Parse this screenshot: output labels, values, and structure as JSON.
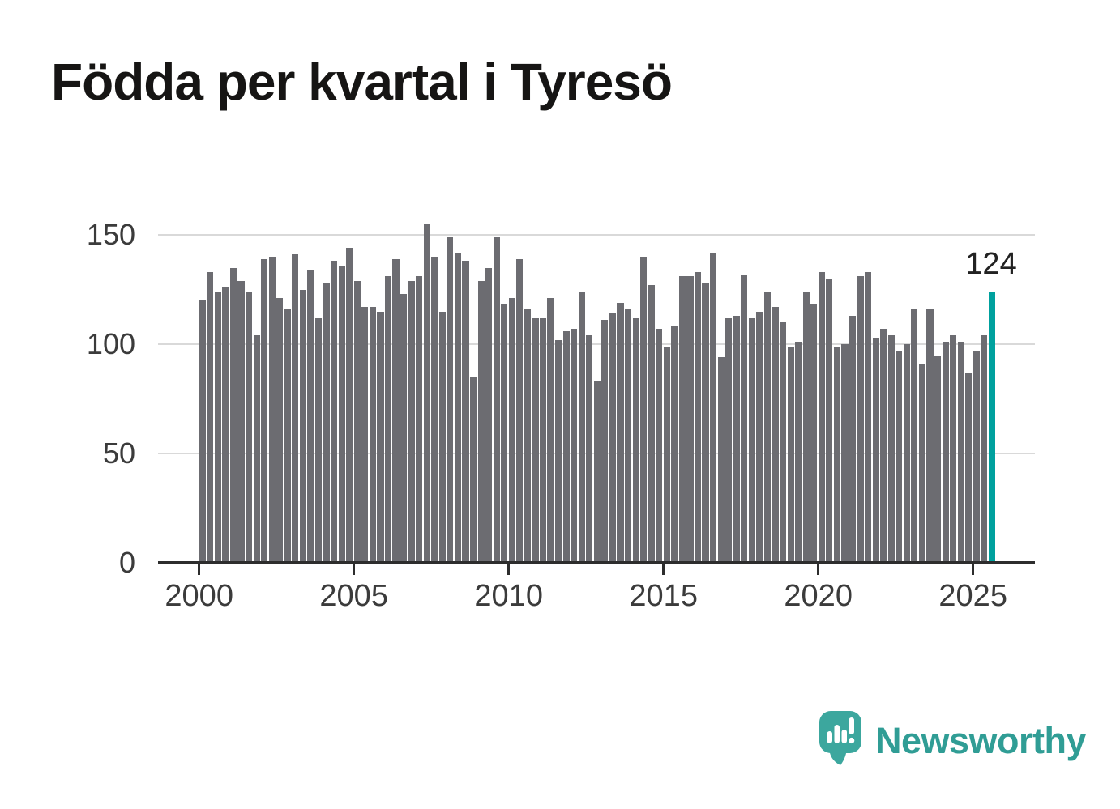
{
  "title": "Födda per kvartal i Tyresö",
  "annotation": {
    "last_value_label": "124"
  },
  "footer": {
    "brand": "Newsworthy"
  },
  "colors": {
    "bar": "#6c6c71",
    "highlight": "#00a19e",
    "logo": "#3ca79e",
    "logo_text": "#309d95",
    "axis": "#2d2d2d",
    "grid": "#d9d9d9"
  },
  "chart_data": {
    "type": "bar",
    "title": "Födda per kvartal i Tyresö",
    "x_start": "2000-Q1",
    "x_end": "2025-Q3",
    "quarters_per_year": 4,
    "start_year": 2000,
    "values": [
      120,
      133,
      124,
      126,
      135,
      129,
      124,
      104,
      139,
      140,
      121,
      116,
      141,
      125,
      134,
      112,
      128,
      138,
      136,
      144,
      129,
      117,
      117,
      115,
      131,
      139,
      123,
      129,
      131,
      155,
      140,
      115,
      149,
      142,
      138,
      85,
      129,
      135,
      149,
      118,
      121,
      139,
      116,
      112,
      112,
      121,
      102,
      106,
      107,
      124,
      104,
      83,
      111,
      114,
      119,
      116,
      112,
      140,
      127,
      107,
      99,
      108,
      131,
      131,
      133,
      128,
      142,
      94,
      112,
      113,
      132,
      112,
      115,
      124,
      117,
      110,
      99,
      101,
      124,
      118,
      133,
      130,
      99,
      100,
      113,
      131,
      133,
      103,
      107,
      104,
      97,
      100,
      116,
      91,
      116,
      95,
      101,
      104,
      101,
      87,
      97,
      104,
      124
    ],
    "highlight_index": 102,
    "highlight_value": 124,
    "highlight_label": "124",
    "bar_color": "#6c6c71",
    "highlight_color": "#00a19e",
    "xlabel": "",
    "ylabel": "",
    "xticks": [
      "2000",
      "2005",
      "2010",
      "2015",
      "2020",
      "2025"
    ],
    "yticks": [
      0,
      50,
      100,
      150
    ],
    "ylim": [
      0,
      155
    ],
    "grid": "horizontal",
    "legend": "none"
  }
}
